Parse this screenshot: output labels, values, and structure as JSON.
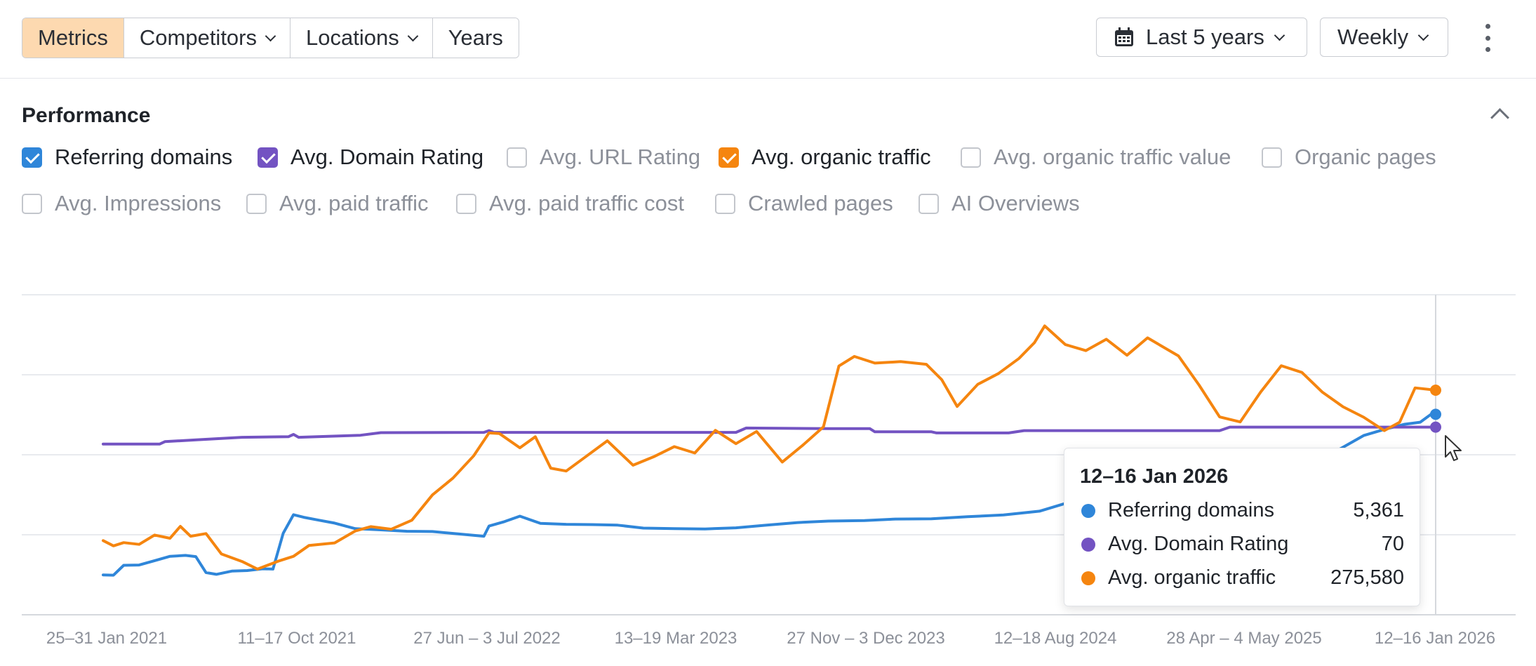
{
  "toolbar": {
    "tabs": [
      {
        "label": "Metrics",
        "active": true,
        "dropdown": false
      },
      {
        "label": "Competitors",
        "active": false,
        "dropdown": true
      },
      {
        "label": "Locations",
        "active": false,
        "dropdown": true
      },
      {
        "label": "Years",
        "active": false,
        "dropdown": false
      }
    ],
    "date_range": "Last 5 years",
    "interval": "Weekly"
  },
  "performance": {
    "title": "Performance",
    "metrics": [
      {
        "label": "Referring domains",
        "checked": true,
        "color": "#2f86d9"
      },
      {
        "label": "Avg. Domain Rating",
        "checked": true,
        "color": "#7353c2"
      },
      {
        "label": "Avg. URL Rating",
        "checked": false
      },
      {
        "label": "Avg. organic traffic",
        "checked": true,
        "color": "#f5850f"
      },
      {
        "label": "Avg. organic traffic value",
        "checked": false
      },
      {
        "label": "Organic pages",
        "checked": false
      },
      {
        "label": "Avg. Impressions",
        "checked": false
      },
      {
        "label": "Avg. paid traffic",
        "checked": false
      },
      {
        "label": "Avg. paid traffic cost",
        "checked": false
      },
      {
        "label": "Crawled pages",
        "checked": false
      },
      {
        "label": "AI Overviews",
        "checked": false
      }
    ]
  },
  "chart_data": {
    "type": "line",
    "x_ticks": [
      "25–31 Jan 2021",
      "11–17 Oct 2021",
      "27 Jun – 3 Jul 2022",
      "13–19 Mar 2023",
      "27 Nov – 3 Dec 2023",
      "12–18 Aug 2024",
      "28 Apr – 4 May 2025",
      "12–16 Jan 2026"
    ],
    "x_range": [
      "2021-01-25",
      "2026-01-12"
    ],
    "grid": true,
    "y_axis_labels_shown": false,
    "series": [
      {
        "name": "Referring domains",
        "color": "#2f86d9",
        "points": [
          [
            "2021-01-25",
            1370
          ],
          [
            "2021-02-08",
            1360
          ],
          [
            "2021-02-22",
            1700
          ],
          [
            "2021-03-15",
            1710
          ],
          [
            "2021-04-05",
            1860
          ],
          [
            "2021-04-26",
            2010
          ],
          [
            "2021-05-17",
            2040
          ],
          [
            "2021-05-31",
            2000
          ],
          [
            "2021-06-14",
            1450
          ],
          [
            "2021-06-28",
            1390
          ],
          [
            "2021-07-19",
            1500
          ],
          [
            "2021-08-09",
            1520
          ],
          [
            "2021-08-30",
            1580
          ],
          [
            "2021-09-13",
            1570
          ],
          [
            "2021-09-27",
            2800
          ],
          [
            "2021-10-11",
            3440
          ],
          [
            "2021-10-25",
            3350
          ],
          [
            "2021-11-15",
            3250
          ],
          [
            "2021-12-06",
            3150
          ],
          [
            "2022-01-03",
            2960
          ],
          [
            "2022-02-07",
            2920
          ],
          [
            "2022-03-14",
            2870
          ],
          [
            "2022-04-18",
            2860
          ],
          [
            "2022-05-23",
            2780
          ],
          [
            "2022-06-27",
            2700
          ],
          [
            "2022-07-04",
            3050
          ],
          [
            "2022-07-25",
            3200
          ],
          [
            "2022-08-15",
            3390
          ],
          [
            "2022-09-12",
            3140
          ],
          [
            "2022-10-17",
            3110
          ],
          [
            "2022-11-21",
            3100
          ],
          [
            "2022-12-26",
            3080
          ],
          [
            "2023-01-30",
            2980
          ],
          [
            "2023-03-13",
            2960
          ],
          [
            "2023-04-24",
            2950
          ],
          [
            "2023-06-05",
            2990
          ],
          [
            "2023-07-17",
            3080
          ],
          [
            "2023-08-28",
            3170
          ],
          [
            "2023-10-09",
            3220
          ],
          [
            "2023-11-27",
            3240
          ],
          [
            "2024-01-08",
            3290
          ],
          [
            "2024-02-26",
            3300
          ],
          [
            "2024-04-15",
            3370
          ],
          [
            "2024-06-03",
            3430
          ],
          [
            "2024-07-22",
            3560
          ],
          [
            "2024-09-02",
            3880
          ],
          [
            "2024-10-14",
            4020
          ],
          [
            "2024-11-25",
            4080
          ],
          [
            "2025-01-06",
            4120
          ],
          [
            "2025-02-17",
            4180
          ],
          [
            "2025-03-31",
            4200
          ],
          [
            "2025-04-28",
            4760
          ],
          [
            "2025-06-09",
            4950
          ],
          [
            "2025-07-07",
            5130
          ],
          [
            "2025-08-04",
            5380
          ],
          [
            "2025-09-01",
            5660
          ],
          [
            "2025-10-06",
            6160
          ],
          [
            "2025-11-03",
            6370
          ],
          [
            "2025-12-01",
            6550
          ],
          [
            "2025-12-22",
            6620
          ],
          [
            "2026-01-05",
            6880
          ],
          [
            "2026-01-12",
            6890
          ]
        ]
      },
      {
        "name": "Avg. Domain Rating",
        "color": "#7353c2",
        "points": [
          [
            "2021-01-25",
            5870
          ],
          [
            "2021-04-12",
            5870
          ],
          [
            "2021-04-19",
            5950
          ],
          [
            "2021-06-07",
            6020
          ],
          [
            "2021-08-02",
            6100
          ],
          [
            "2021-10-04",
            6120
          ],
          [
            "2021-10-11",
            6200
          ],
          [
            "2021-10-18",
            6100
          ],
          [
            "2022-01-10",
            6170
          ],
          [
            "2022-02-07",
            6260
          ],
          [
            "2022-06-27",
            6270
          ],
          [
            "2022-07-04",
            6330
          ],
          [
            "2022-07-11",
            6270
          ],
          [
            "2023-06-05",
            6270
          ],
          [
            "2023-06-19",
            6420
          ],
          [
            "2023-10-09",
            6400
          ],
          [
            "2023-12-04",
            6400
          ],
          [
            "2023-12-11",
            6290
          ],
          [
            "2024-02-26",
            6290
          ],
          [
            "2024-03-04",
            6250
          ],
          [
            "2024-06-10",
            6250
          ],
          [
            "2024-07-01",
            6330
          ],
          [
            "2025-03-24",
            6330
          ],
          [
            "2025-04-07",
            6450
          ],
          [
            "2026-01-12",
            6450
          ]
        ]
      },
      {
        "name": "Avg. organic traffic",
        "color": "#f5850f",
        "points": [
          [
            "2021-01-25",
            2550
          ],
          [
            "2021-02-08",
            2370
          ],
          [
            "2021-02-22",
            2480
          ],
          [
            "2021-03-15",
            2420
          ],
          [
            "2021-04-05",
            2740
          ],
          [
            "2021-04-26",
            2630
          ],
          [
            "2021-05-10",
            3040
          ],
          [
            "2021-05-24",
            2700
          ],
          [
            "2021-06-14",
            2790
          ],
          [
            "2021-07-05",
            2090
          ],
          [
            "2021-08-02",
            1830
          ],
          [
            "2021-08-23",
            1570
          ],
          [
            "2021-09-20",
            1840
          ],
          [
            "2021-10-11",
            2010
          ],
          [
            "2021-11-01",
            2380
          ],
          [
            "2021-12-06",
            2470
          ],
          [
            "2022-01-03",
            2880
          ],
          [
            "2022-01-24",
            3030
          ],
          [
            "2022-02-21",
            2940
          ],
          [
            "2022-03-21",
            3250
          ],
          [
            "2022-04-18",
            4120
          ],
          [
            "2022-05-16",
            4700
          ],
          [
            "2022-06-13",
            5460
          ],
          [
            "2022-07-04",
            6250
          ],
          [
            "2022-07-18",
            6230
          ],
          [
            "2022-08-15",
            5740
          ],
          [
            "2022-09-05",
            6120
          ],
          [
            "2022-09-26",
            5040
          ],
          [
            "2022-10-17",
            4940
          ],
          [
            "2022-11-14",
            5460
          ],
          [
            "2022-12-12",
            5980
          ],
          [
            "2023-01-16",
            5140
          ],
          [
            "2023-02-13",
            5430
          ],
          [
            "2023-03-13",
            5780
          ],
          [
            "2023-04-10",
            5560
          ],
          [
            "2023-05-08",
            6340
          ],
          [
            "2023-06-05",
            5880
          ],
          [
            "2023-07-03",
            6300
          ],
          [
            "2023-08-07",
            5250
          ],
          [
            "2023-09-04",
            5830
          ],
          [
            "2023-10-02",
            6460
          ],
          [
            "2023-10-23",
            8550
          ],
          [
            "2023-11-13",
            8880
          ],
          [
            "2023-12-11",
            8650
          ],
          [
            "2024-01-15",
            8700
          ],
          [
            "2024-02-19",
            8610
          ],
          [
            "2024-03-11",
            8080
          ],
          [
            "2024-04-01",
            7160
          ],
          [
            "2024-04-29",
            7920
          ],
          [
            "2024-05-27",
            8290
          ],
          [
            "2024-06-24",
            8810
          ],
          [
            "2024-07-15",
            9350
          ],
          [
            "2024-07-29",
            9930
          ],
          [
            "2024-08-26",
            9290
          ],
          [
            "2024-09-23",
            9080
          ],
          [
            "2024-10-21",
            9470
          ],
          [
            "2024-11-18",
            8920
          ],
          [
            "2024-12-16",
            9520
          ],
          [
            "2025-01-27",
            8900
          ],
          [
            "2025-02-24",
            7900
          ],
          [
            "2025-03-24",
            6800
          ],
          [
            "2025-04-21",
            6630
          ],
          [
            "2025-05-19",
            7660
          ],
          [
            "2025-06-16",
            8560
          ],
          [
            "2025-07-14",
            8330
          ],
          [
            "2025-08-11",
            7650
          ],
          [
            "2025-09-08",
            7150
          ],
          [
            "2025-10-06",
            6790
          ],
          [
            "2025-11-03",
            6330
          ],
          [
            "2025-11-24",
            6620
          ],
          [
            "2025-12-15",
            7800
          ],
          [
            "2026-01-12",
            7720
          ]
        ]
      }
    ]
  },
  "tooltip": {
    "date": "12–16 Jan 2026",
    "rows": [
      {
        "name": "Referring domains",
        "value": "5,361",
        "color": "#2f86d9"
      },
      {
        "name": "Avg. Domain Rating",
        "value": "70",
        "color": "#7353c2"
      },
      {
        "name": "Avg. organic traffic",
        "value": "275,580",
        "color": "#f5850f"
      }
    ]
  }
}
